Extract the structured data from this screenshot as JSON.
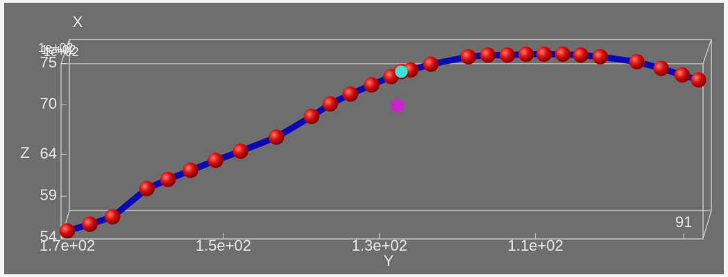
{
  "chart_data": {
    "type": "line3d",
    "x_label": "Y",
    "y_label": "Z",
    "depth_label": "X",
    "depth_tick_labels": [
      "1e+02",
      "1e+02",
      "1e+02"
    ],
    "xlim": [
      170,
      88.8
    ],
    "ylim": [
      54,
      76.8
    ],
    "xticks": [
      {
        "value": 170,
        "label": "1.7e+02"
      },
      {
        "value": 150,
        "label": "1.5e+02"
      },
      {
        "value": 130,
        "label": "1.3e+02"
      },
      {
        "value": 110,
        "label": "1.1e+02"
      },
      91
    ],
    "yticks": [
      54,
      59,
      64,
      70,
      75
    ],
    "series": [
      {
        "color": "#0a0ab4",
        "marker_color": "#dd1010",
        "x": [
          170,
          167.1,
          164.2,
          159.8,
          157.1,
          154.2,
          151.0,
          147.8,
          143.2,
          138.7,
          136.3,
          133.7,
          131.0,
          128.5,
          127.2,
          126.0,
          123.4,
          118.6,
          116.1,
          113.6,
          111.2,
          108.9,
          106.5,
          104.2,
          101.7,
          97.0,
          93.9,
          91.2,
          89.1
        ],
        "values": [
          54.8,
          55.6,
          56.5,
          59.9,
          61.0,
          62.1,
          63.3,
          64.4,
          66.1,
          68.6,
          70.1,
          71.3,
          72.4,
          73.4,
          74.0,
          74.2,
          74.9,
          75.8,
          76.0,
          76.0,
          76.1,
          76.1,
          76.1,
          76.0,
          75.8,
          75.2,
          74.4,
          73.6,
          73.0
        ]
      }
    ],
    "highlight": {
      "x": 127.2,
      "y": 74.0,
      "color": "#3fe0d8"
    },
    "target": {
      "x": 127.7,
      "y": 69.9,
      "color": "#cc22cc"
    }
  }
}
